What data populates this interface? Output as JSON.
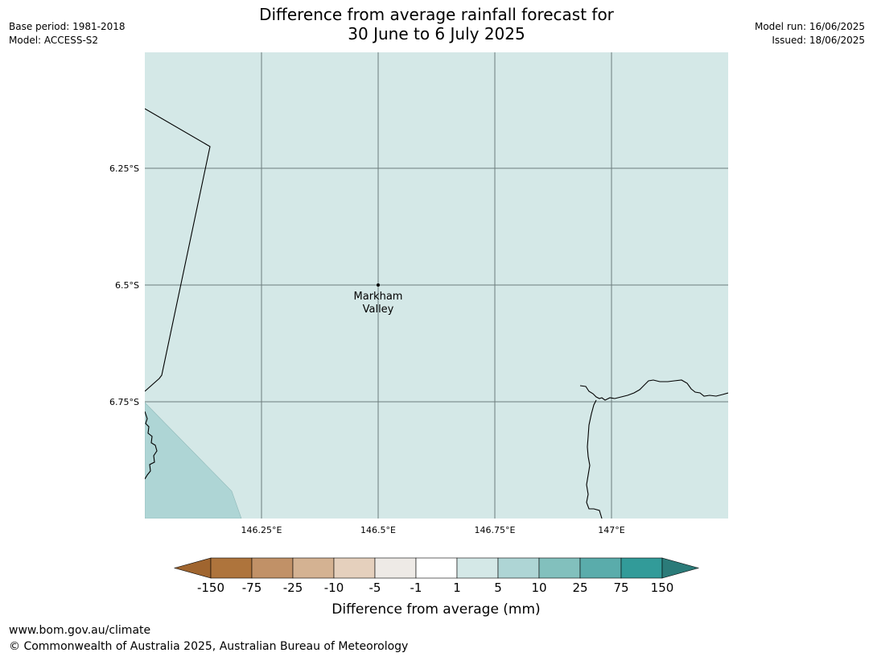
{
  "meta": {
    "base_period": "Base period: 1981-2018",
    "model": "Model: ACCESS-S2",
    "model_run": "Model run: 16/06/2025",
    "issued": "Issued: 18/06/2025"
  },
  "title": {
    "line1": "Difference from average rainfall forecast for",
    "line2": "30 June to 6 July 2025"
  },
  "map": {
    "lat_ticks": [
      "6.25°S",
      "6.5°S",
      "6.75°S"
    ],
    "lon_ticks": [
      "146.25°E",
      "146.5°E",
      "146.75°E",
      "147°E"
    ],
    "place": {
      "line1": "Markham",
      "line2": "Valley"
    },
    "colors": {
      "background_class": "#d4e8e7",
      "lower_left_class": "#aed5d5",
      "gridline": "#5a6a6a",
      "coastline": "#000000"
    }
  },
  "legend": {
    "title": "Difference from average (mm)",
    "ticks": [
      "-150",
      "-75",
      "-25",
      "-10",
      "-5",
      "-1",
      "1",
      "5",
      "10",
      "25",
      "75",
      "150"
    ],
    "colors": [
      "#a0652f",
      "#ae743c",
      "#c19167",
      "#d4b292",
      "#e5d0bd",
      "#eeeae6",
      "#ffffff",
      "#d4e8e7",
      "#aed5d5",
      "#82c0bd",
      "#5aacab",
      "#329b99",
      "#2b7b79"
    ]
  },
  "footer": {
    "url": "www.bom.gov.au/climate",
    "copyright": "© Commonwealth of Australia 2025, Australian Bureau of Meteorology"
  }
}
